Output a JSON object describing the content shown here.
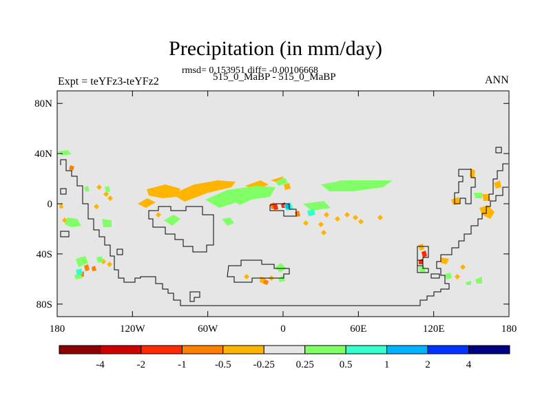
{
  "title": "Precipitation (in mm/day)",
  "stats_line": "rmsd= 0.153951 diff= -0.00106668",
  "subtitle": "515_0_MaBP - 515_0_MaBP",
  "left_label": "Expt = teYFz3-teYFz2",
  "right_label": "ANN",
  "map": {
    "projection": "cylindrical equidistant",
    "lon_range": [
      -180,
      180
    ],
    "lat_range": [
      -90,
      90
    ],
    "background_color": "#e6e6e6",
    "lat_ticks": [
      {
        "value": 80,
        "label": "80N"
      },
      {
        "value": 40,
        "label": "40N"
      },
      {
        "value": 0,
        "label": "0"
      },
      {
        "value": -40,
        "label": "40S"
      },
      {
        "value": -80,
        "label": "80S"
      }
    ],
    "lon_ticks": [
      {
        "value": -180,
        "label": "180"
      },
      {
        "value": -120,
        "label": "120W"
      },
      {
        "value": -60,
        "label": "60W"
      },
      {
        "value": 0,
        "label": "0"
      },
      {
        "value": 60,
        "label": "60E"
      },
      {
        "value": 120,
        "label": "120E"
      },
      {
        "value": 180,
        "label": "180"
      }
    ]
  },
  "colorbar": {
    "colors": [
      "#8b0000",
      "#cc0000",
      "#ff2a00",
      "#ff7f00",
      "#ffb400",
      "#e6e6e6",
      "#80ff66",
      "#33ffcc",
      "#00b4ff",
      "#0033ff",
      "#000080"
    ],
    "labels": [
      "-4",
      "-2",
      "-1",
      "-0.5",
      "-0.25",
      "0.25",
      "0.5",
      "1",
      "2",
      "4"
    ]
  }
}
